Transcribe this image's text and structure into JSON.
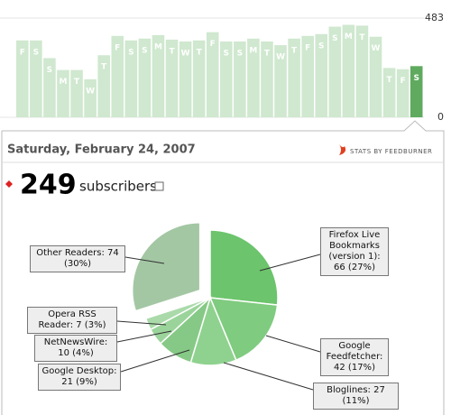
{
  "header": {
    "date": "Saturday, February 24, 2007",
    "stats_by": "STATS BY FEEDBURNER",
    "subscribers_count": "249",
    "subscribers_label": "subscribers"
  },
  "chart_data": [
    {
      "type": "bar",
      "categories": [
        "F",
        "S",
        "S",
        "M",
        "T",
        "W",
        "T",
        "F",
        "S",
        "S",
        "M",
        "T",
        "W",
        "T",
        "F",
        "S",
        "S",
        "M",
        "T",
        "W",
        "T",
        "F",
        "S",
        "S",
        "M",
        "T",
        "W",
        "T",
        "F",
        "S"
      ],
      "values": [
        374,
        374,
        288,
        230,
        230,
        185,
        302,
        396,
        374,
        383,
        400,
        378,
        369,
        374,
        414,
        369,
        369,
        383,
        369,
        351,
        383,
        396,
        405,
        441,
        450,
        446,
        392,
        240,
        234,
        249
      ],
      "color": "#cfe8cf",
      "highlight_color": "#5faa5f",
      "ylim": [
        0,
        483
      ],
      "yticks": [
        0,
        483
      ],
      "grid": true
    },
    {
      "type": "pie",
      "values": [
        66,
        42,
        27,
        21,
        10,
        7,
        74
      ],
      "value_labels": [
        "Firefox Live Bookmarks (version 1): 66 (27%)",
        "Google Feedfetcher: 42 (17%)",
        "Bloglines: 27 (11%)",
        "Google Desktop: 21 (9%)",
        "NetNewsWire: 10 (4%)",
        "Opera RSS Reader: 7 (3%)",
        "Other Readers: 74 (30%)"
      ],
      "colors": [
        "#6cc46c",
        "#7fcb7f",
        "#8fd28f",
        "#86c986",
        "#9bd49b",
        "#aadaaa",
        "#a3c7a3"
      ]
    }
  ]
}
